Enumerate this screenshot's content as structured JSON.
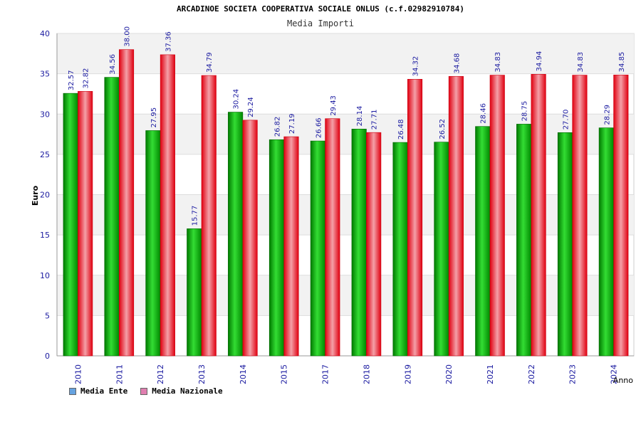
{
  "chart_data": {
    "type": "bar",
    "title": "ARCADINOE SOCIETA COOPERATIVA SOCIALE ONLUS (c.f.02982910784)",
    "subtitle": "Media Importi",
    "xlabel": "Anno",
    "ylabel": "Euro",
    "ylim": [
      0,
      40
    ],
    "yticks": [
      0,
      5,
      10,
      15,
      20,
      25,
      30,
      35,
      40
    ],
    "grid": true,
    "legend_position": "bottom-left",
    "categories": [
      "2010",
      "2011",
      "2012",
      "2013",
      "2014",
      "2015",
      "2017",
      "2018",
      "2019",
      "2020",
      "2021",
      "2022",
      "2023",
      "2024"
    ],
    "series": [
      {
        "name": "Media Ente",
        "values": [
          32.57,
          34.56,
          27.95,
          15.77,
          30.24,
          26.82,
          26.66,
          28.14,
          26.48,
          26.52,
          28.46,
          28.75,
          27.7,
          28.29
        ],
        "labels": [
          "32.57",
          "34.56",
          "27.95",
          "15.77",
          "30.24",
          "26.82",
          "26.66",
          "28.14",
          "26.48",
          "26.52",
          "28.46",
          "28.75",
          "27.70",
          "28.29"
        ],
        "color": "#00a000",
        "legend_color": "#66a3e0"
      },
      {
        "name": "Media Nazionale",
        "values": [
          32.82,
          38.0,
          37.36,
          34.79,
          29.24,
          27.19,
          29.43,
          27.71,
          34.32,
          34.68,
          34.83,
          34.94,
          34.83,
          34.85
        ],
        "labels": [
          "32.82",
          "38.00",
          "37.36",
          "34.79",
          "29.24",
          "27.19",
          "29.43",
          "27.71",
          "34.32",
          "34.68",
          "34.83",
          "34.94",
          "34.83",
          "34.85"
        ],
        "color": "#e8202a",
        "legend_color": "#e07fb0"
      }
    ]
  }
}
